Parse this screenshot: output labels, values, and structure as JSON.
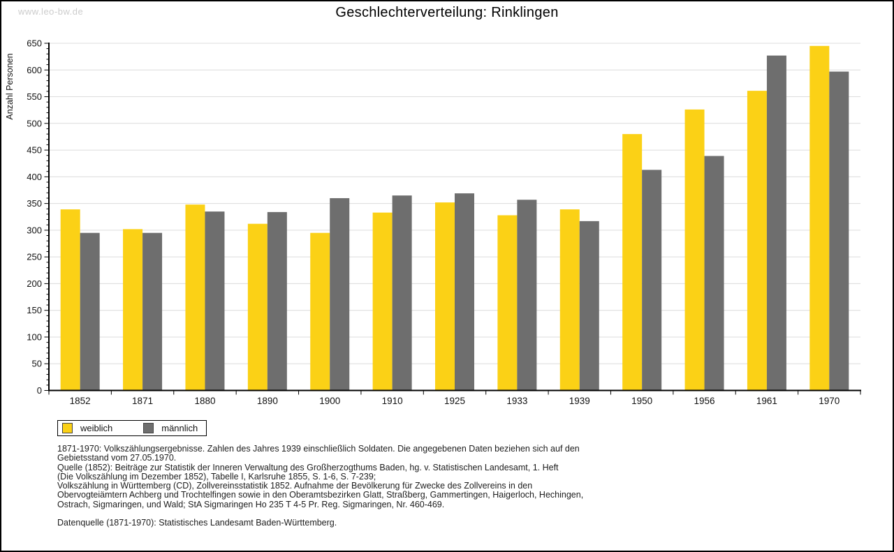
{
  "watermark": "www.leo-bw.de",
  "title": "Geschlechterverteilung: Rinklingen",
  "chart_data": {
    "type": "bar",
    "title": "Geschlechterverteilung: Rinklingen",
    "xlabel": "",
    "ylabel": "Anzahl Personen",
    "categories": [
      "1852",
      "1871",
      "1880",
      "1890",
      "1900",
      "1910",
      "1925",
      "1933",
      "1939",
      "1950",
      "1956",
      "1961",
      "1970"
    ],
    "series": [
      {
        "name": "weiblich",
        "color": "#FBD116",
        "values": [
          339,
          302,
          348,
          312,
          295,
          333,
          352,
          328,
          339,
          480,
          526,
          561,
          645
        ]
      },
      {
        "name": "männlich",
        "color": "#6E6E6E",
        "values": [
          295,
          295,
          335,
          334,
          360,
          365,
          369,
          357,
          317,
          413,
          439,
          627,
          597
        ]
      }
    ],
    "ylim": [
      0,
      650
    ],
    "ytick_major_step": 50,
    "ytick_minor_step": 10,
    "grid": true,
    "gridline_color": "#dcdcdc",
    "axis_color": "#000000",
    "legend_position": "bottom-left"
  },
  "footnotes": [
    "1871-1970: Volkszählungsergebnisse. Zahlen des Jahres 1939 einschließlich Soldaten. Die angegebenen Daten beziehen sich auf den",
    "Gebietsstand vom 27.05.1970.",
    "Quelle (1852): Beiträge zur Statistik der Inneren Verwaltung des Großherzogthums Baden, hg. v. Statistischen Landesamt, 1. Heft",
    "(Die Volkszählung im Dezember 1852), Tabelle I, Karlsruhe 1855, S. 1-6, S. 7-239;",
    "Volkszählung in Württemberg (CD), Zollvereinsstatistik 1852. Aufnahme der Bevölkerung für Zwecke des Zollvereins in den",
    "Obervogteiämtern Achberg und Trochtelfingen sowie in den Oberamtsbezirken Glatt, Straßberg, Gammertingen, Haigerloch, Hechingen,",
    "Ostrach, Sigmaringen, und Wald; StA Sigmaringen Ho 235 T 4-5 Pr. Reg. Sigmaringen, Nr. 460-469.",
    "",
    "Datenquelle (1871-1970): Statistisches Landesamt Baden-Württemberg."
  ],
  "colors": {
    "watermark": "#cccccc",
    "background": "#ffffff",
    "border": "#000000",
    "weiblich": "#FBD116",
    "maennlich": "#6E6E6E"
  }
}
